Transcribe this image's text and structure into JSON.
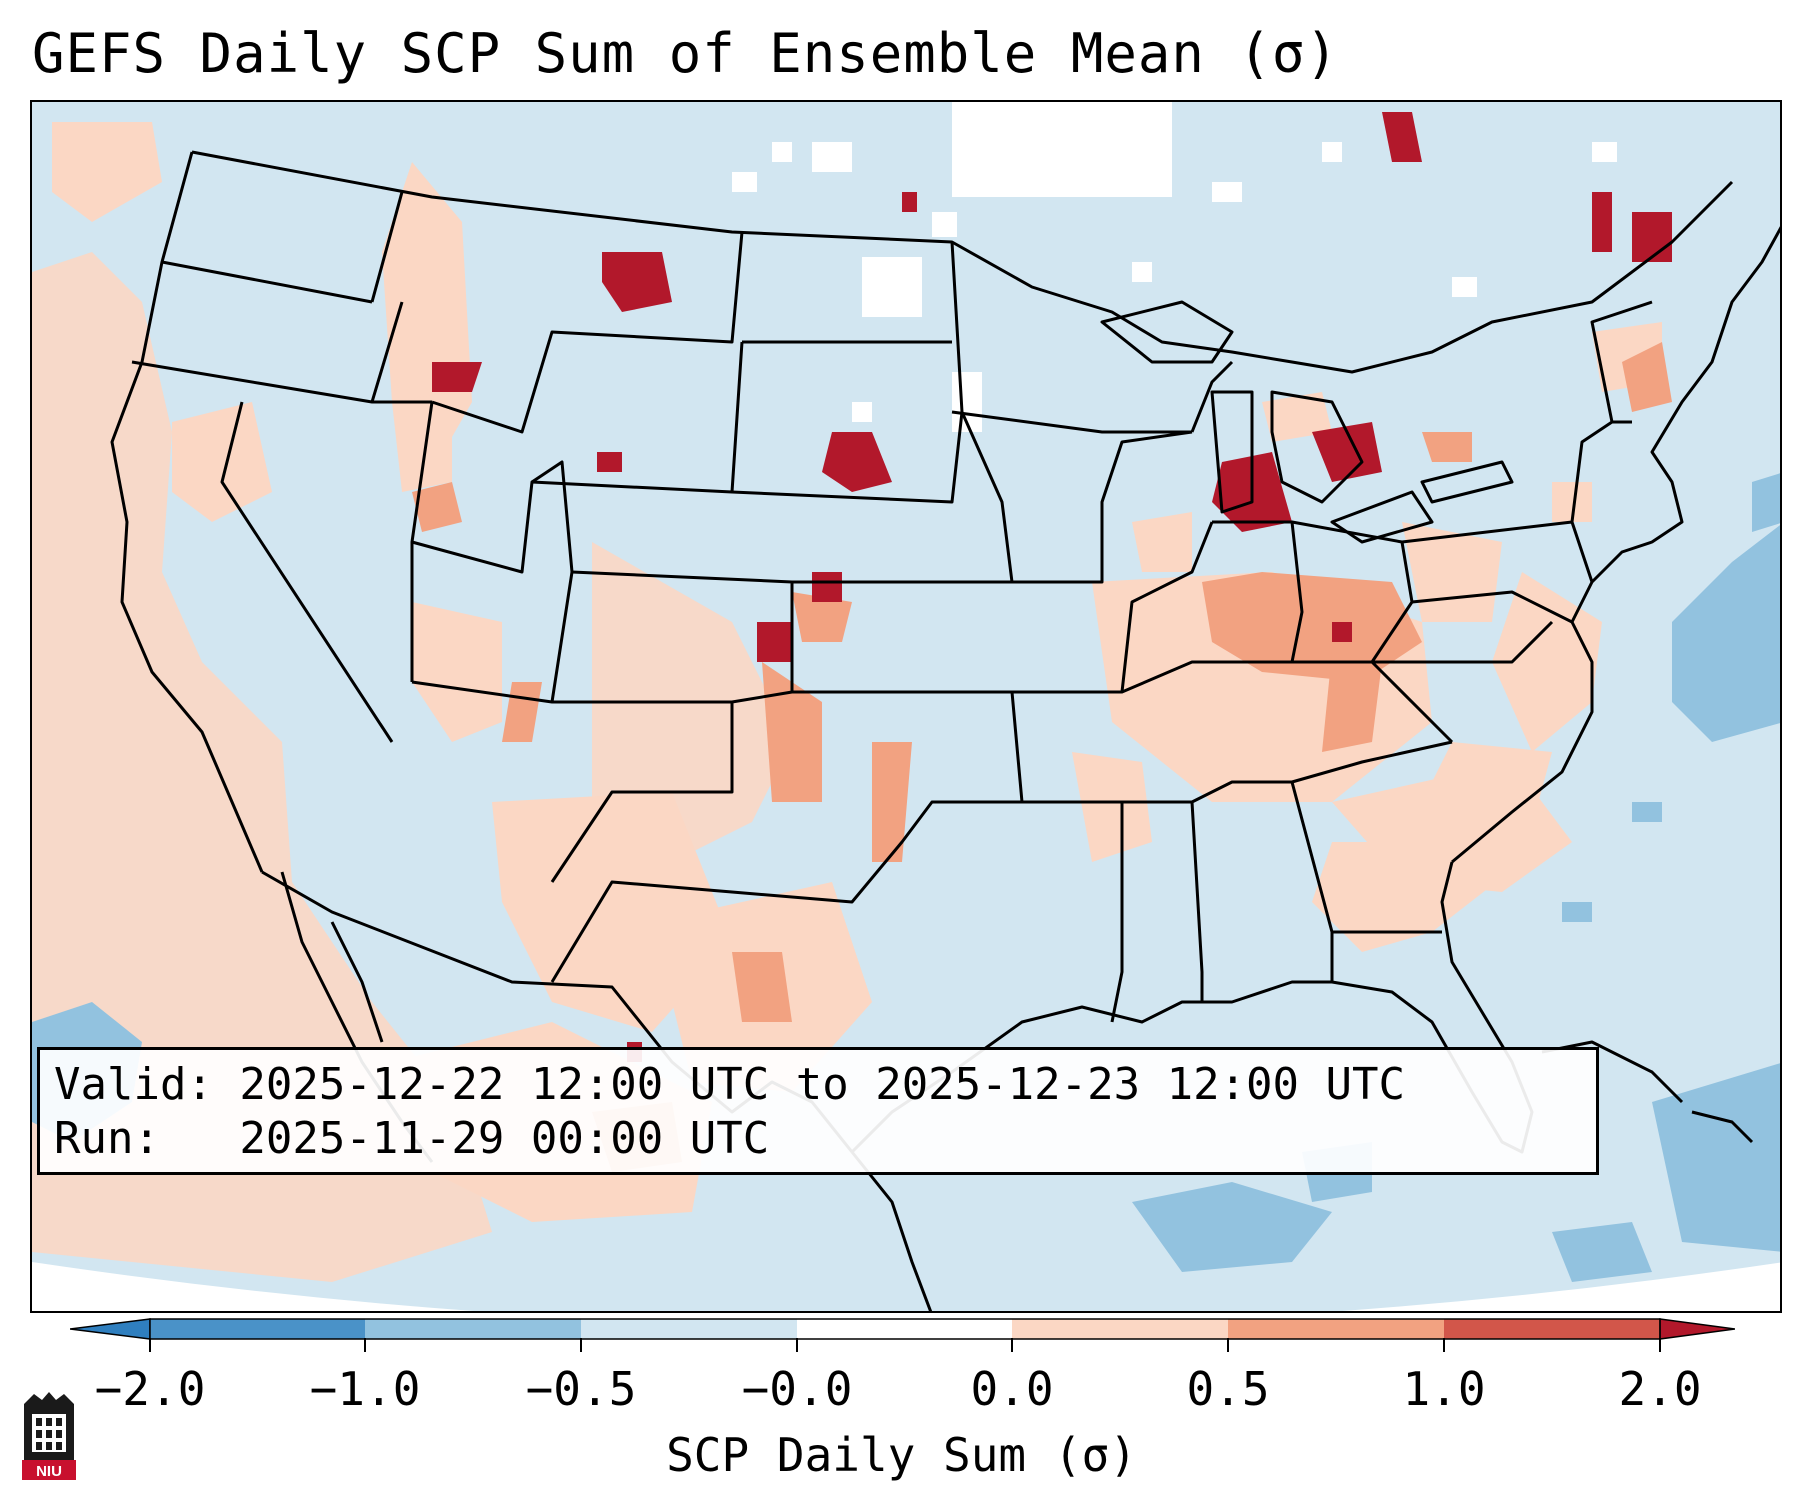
{
  "title": "GEFS Daily SCP Sum of Ensemble Mean (σ)",
  "info": {
    "valid_line": "Valid: 2025-12-22 12:00 UTC to 2025-12-23 12:00 UTC",
    "run_line": "Run:   2025-11-29 00:00 UTC"
  },
  "colorbar": {
    "label": "SCP Daily Sum (σ)",
    "ticks": [
      "−2.0",
      "−1.0",
      "−0.5",
      "−0.0",
      "0.0",
      "0.5",
      "1.0",
      "2.0"
    ],
    "colors": {
      "extend_low": "#2f7fbf",
      "neg_strong": "#4a92c8",
      "neg_mid": "#92c2df",
      "neg_weak": "#d2e6f1",
      "zero": "#ffffff",
      "pos_weak": "#fbd7c4",
      "pos_mid": "#f2a281",
      "pos_strong": "#d2564a",
      "extend_high": "#b2182b"
    }
  },
  "logo": {
    "text": "NIU"
  }
}
